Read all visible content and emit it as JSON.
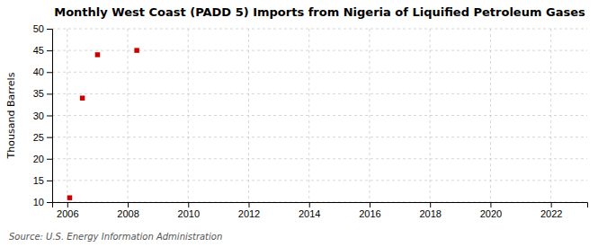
{
  "chart_data": {
    "type": "scatter",
    "title": "Monthly West Coast (PADD 5) Imports from Nigeria of Liquified Petroleum Gases",
    "ylabel": "Thousand Barrels",
    "source": "Source: U.S. Energy Information Administration",
    "x": [
      2006.08,
      2006.5,
      2007.0,
      2008.3
    ],
    "values": [
      11,
      34,
      44,
      45
    ],
    "color": "#cc0000",
    "marker": "square",
    "xlim": [
      2005.5,
      2023.2
    ],
    "ylim": [
      10,
      50
    ],
    "xticks": [
      2006,
      2008,
      2010,
      2012,
      2014,
      2016,
      2018,
      2020,
      2022
    ],
    "yticks": [
      10,
      15,
      20,
      25,
      30,
      35,
      40,
      45,
      50
    ],
    "grid": true
  }
}
